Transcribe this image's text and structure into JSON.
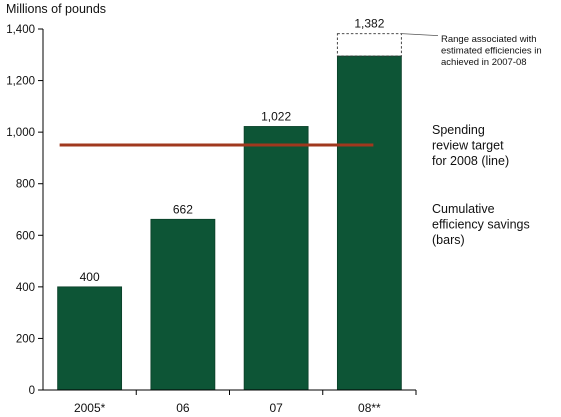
{
  "chart_data": {
    "type": "bar",
    "ylabel": "Millions of pounds",
    "ylim": [
      0,
      1400
    ],
    "yticks": [
      0,
      200,
      400,
      600,
      800,
      1000,
      1200,
      1400
    ],
    "ytick_labels": [
      "0",
      "200",
      "400",
      "600",
      "800",
      "1,000",
      "1,200",
      "1,400"
    ],
    "categories": [
      "2005*",
      "06",
      "07",
      "08**"
    ],
    "series": [
      {
        "name": "Cumulative efficiency savings (bars)",
        "values": [
          400,
          662,
          1022,
          1295
        ],
        "data_labels": [
          "400",
          "662",
          "1,022",
          ""
        ]
      }
    ],
    "range_estimate": {
      "category": "08**",
      "from": 1295,
      "to": 1382,
      "label": "1,382",
      "annotation": [
        "Range associated with",
        "estimated efficiencies in",
        "achieved in 2007-08"
      ]
    },
    "target_line": {
      "value": 950,
      "label": [
        "Spending",
        "review target",
        "for 2008 (line)"
      ]
    },
    "bar_note": [
      "Cumulative",
      "efficiency savings",
      "(bars)"
    ],
    "colors": {
      "bar": "#0d5536",
      "target_line": "#a0381e",
      "axis": "#000000",
      "range_box": "#333333"
    }
  }
}
